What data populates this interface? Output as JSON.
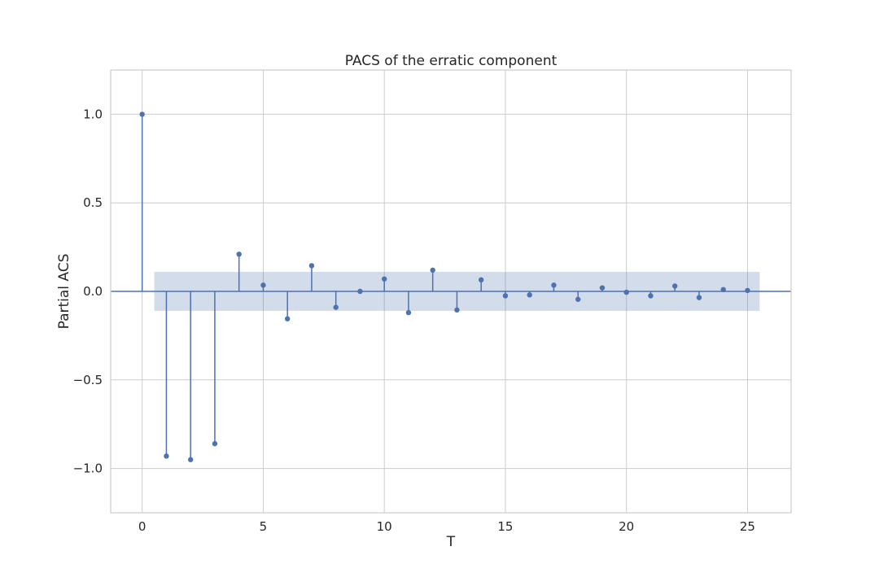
{
  "chart_data": {
    "type": "stem",
    "title": "PACS of the erratic component",
    "xlabel": "T",
    "ylabel": "Partial ACS",
    "xlim": [
      -1.3,
      26.8
    ],
    "ylim": [
      -1.25,
      1.25
    ],
    "x_ticks": [
      0,
      5,
      10,
      15,
      20,
      25
    ],
    "x_tick_labels": [
      "0",
      "5",
      "10",
      "15",
      "20",
      "25"
    ],
    "y_ticks": [
      -1.0,
      -0.5,
      0.0,
      0.5,
      1.0
    ],
    "y_tick_labels": [
      "−1.0",
      "−0.5",
      "0.0",
      "0.5",
      "1.0"
    ],
    "grid": true,
    "lags": [
      0,
      1,
      2,
      3,
      4,
      5,
      6,
      7,
      8,
      9,
      10,
      11,
      12,
      13,
      14,
      15,
      16,
      17,
      18,
      19,
      20,
      21,
      22,
      23,
      24,
      25
    ],
    "values": [
      1.0,
      -0.93,
      -0.95,
      -0.86,
      0.21,
      0.035,
      -0.155,
      0.145,
      -0.09,
      0.0,
      0.07,
      -0.12,
      0.12,
      -0.105,
      0.065,
      -0.025,
      -0.02,
      0.035,
      -0.045,
      0.02,
      -0.005,
      -0.025,
      0.03,
      -0.035,
      0.01,
      0.005
    ],
    "confidence_band": {
      "x_start": 0.5,
      "x_end": 25.5,
      "upper": 0.11,
      "lower": -0.11
    },
    "colors": {
      "stem": "#4c72b0",
      "band": "#4c72b0",
      "band_opacity": 0.25
    }
  }
}
